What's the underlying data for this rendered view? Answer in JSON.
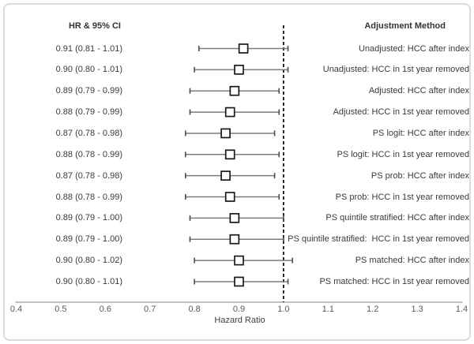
{
  "headers": {
    "left": "HR & 95% CI",
    "right": "Adjustment Method"
  },
  "chart_data": {
    "type": "forest",
    "title": "",
    "xlabel": "Hazard Ratio",
    "xlim": [
      0.4,
      1.4
    ],
    "x_ticks": [
      "0.4",
      "0.5",
      "0.6",
      "0.7",
      "0.8",
      "0.9",
      "1.0",
      "1.1",
      "1.2",
      "1.3",
      "1.4"
    ],
    "reference_line": 1.0,
    "grid": false,
    "rows": [
      {
        "hr": 0.91,
        "lo": 0.81,
        "hi": 1.01,
        "ci_label": "0.91 (0.81 - 1.01)",
        "method": "Unadjusted: HCC after index"
      },
      {
        "hr": 0.9,
        "lo": 0.8,
        "hi": 1.01,
        "ci_label": "0.90 (0.80 - 1.01)",
        "method": "Unadjusted: HCC in 1st year removed"
      },
      {
        "hr": 0.89,
        "lo": 0.79,
        "hi": 0.99,
        "ci_label": "0.89 (0.79 - 0.99)",
        "method": "Adjusted: HCC after index"
      },
      {
        "hr": 0.88,
        "lo": 0.79,
        "hi": 0.99,
        "ci_label": "0.88 (0.79 - 0.99)",
        "method": "Adjusted: HCC in 1st year removed"
      },
      {
        "hr": 0.87,
        "lo": 0.78,
        "hi": 0.98,
        "ci_label": "0.87 (0.78 - 0.98)",
        "method": "PS logit: HCC after index"
      },
      {
        "hr": 0.88,
        "lo": 0.78,
        "hi": 0.99,
        "ci_label": "0.88 (0.78 - 0.99)",
        "method": "PS logit: HCC in 1st year removed"
      },
      {
        "hr": 0.87,
        "lo": 0.78,
        "hi": 0.98,
        "ci_label": "0.87 (0.78 - 0.98)",
        "method": "PS prob: HCC after index"
      },
      {
        "hr": 0.88,
        "lo": 0.78,
        "hi": 0.99,
        "ci_label": "0.88 (0.78 - 0.99)",
        "method": "PS prob: HCC in 1st year removed"
      },
      {
        "hr": 0.89,
        "lo": 0.79,
        "hi": 1.0,
        "ci_label": "0.89 (0.79 - 1.00)",
        "method": "PS quintile stratified: HCC after index"
      },
      {
        "hr": 0.89,
        "lo": 0.79,
        "hi": 1.0,
        "ci_label": "0.89 (0.79 - 1.00)",
        "method": "PS quintile stratified:  HCC in 1st year removed"
      },
      {
        "hr": 0.9,
        "lo": 0.8,
        "hi": 1.02,
        "ci_label": "0.90 (0.80 - 1.02)",
        "method": "PS matched: HCC after index"
      },
      {
        "hr": 0.9,
        "lo": 0.8,
        "hi": 1.01,
        "ci_label": "0.90 (0.80 - 1.01)",
        "method": "PS matched: HCC in 1st year removed"
      }
    ]
  },
  "colors": {
    "whisker_line": "#7c7c7c",
    "whisker_cap": "#4d4d4d",
    "marker_border": "#1a1a1a",
    "marker_fill": "#ffffff",
    "axis_line": "#9a9a9a",
    "reference_line": "#111111",
    "tick_text": "#595959",
    "body_text": "#3a3a3a",
    "frame_border": "#dcdcdc"
  }
}
